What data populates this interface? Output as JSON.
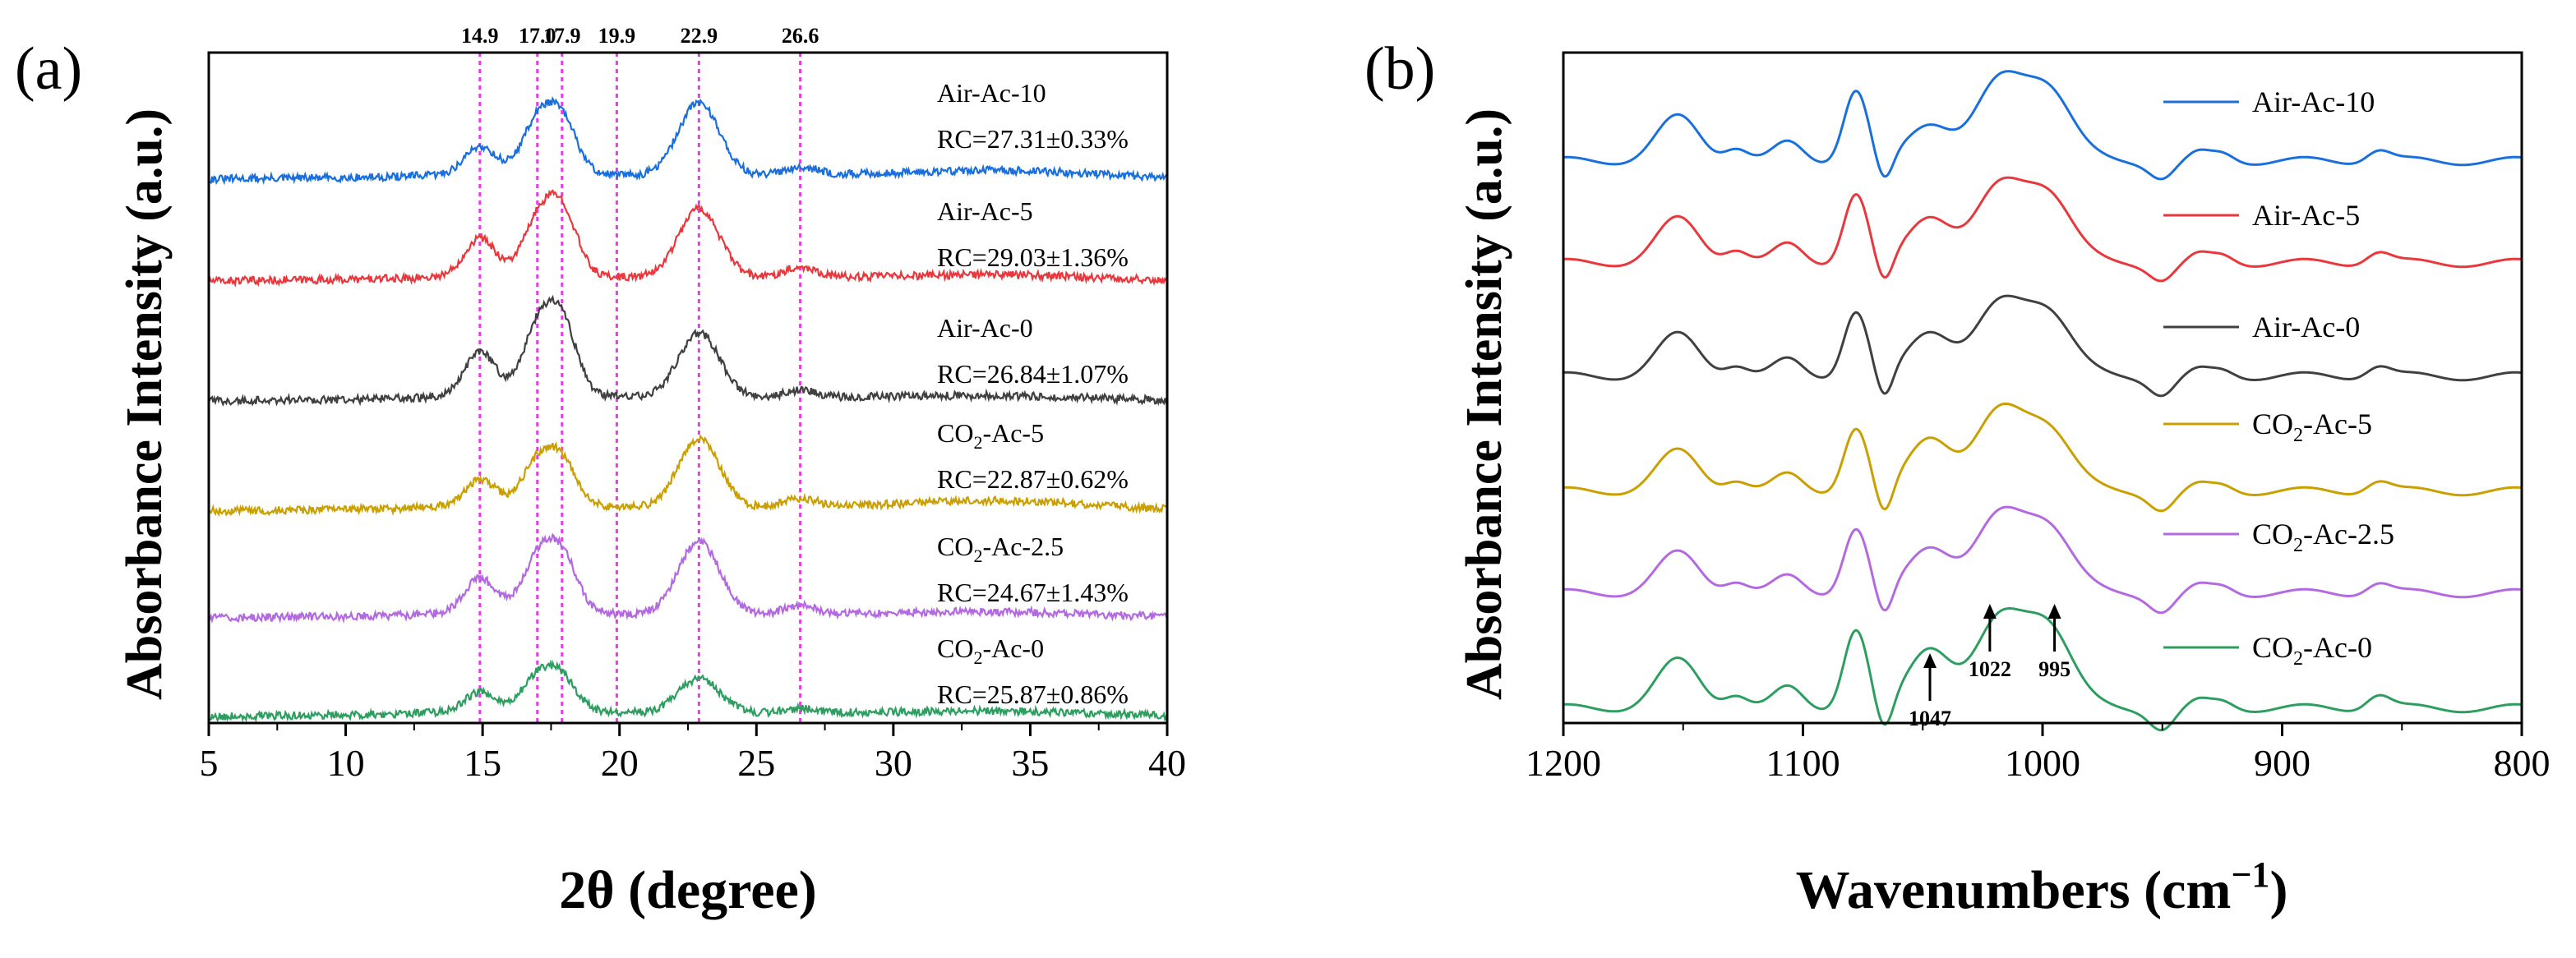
{
  "chart_data": [
    {
      "panel_label": "(a)",
      "type": "line",
      "xlabel": "2θ (degree)",
      "ylabel": "Absorbance Intensity (a.u.)",
      "xlim": [
        5,
        40
      ],
      "xticks": [
        5,
        10,
        15,
        20,
        25,
        30,
        35,
        40
      ],
      "xtick_labels": [
        "5",
        "10",
        "15",
        "20",
        "25",
        "30",
        "35",
        "40"
      ],
      "grid": false,
      "legend": "inline labels at right",
      "reference_lines": [
        {
          "x": 14.9,
          "label": "14.9"
        },
        {
          "x": 17.0,
          "label": "17.0"
        },
        {
          "x": 17.9,
          "label": "17.9"
        },
        {
          "x": 19.9,
          "label": "19.9"
        },
        {
          "x": 22.9,
          "label": "22.9"
        },
        {
          "x": 26.6,
          "label": "26.6"
        }
      ],
      "reference_line_color": "#e040e0",
      "peak_centers": [
        14.9,
        17.0,
        17.9,
        22.9,
        26.6,
        34.0
      ],
      "series": [
        {
          "name": "Air-Ac-10",
          "rc_label": "RC=27.31±0.33%",
          "color": "#1a6fdc",
          "offset": 5,
          "peak_heights": [
            0.3,
            0.55,
            0.58,
            0.85,
            0.1,
            0.08
          ]
        },
        {
          "name": "Air-Ac-5",
          "rc_label": "RC=29.03±1.36%",
          "color": "#e8383d",
          "offset": 4,
          "peak_heights": [
            0.42,
            0.55,
            0.72,
            0.8,
            0.12,
            0.05
          ]
        },
        {
          "name": "Air-Ac-0",
          "rc_label": "RC=26.84±1.07%",
          "color": "#404040",
          "offset": 3,
          "peak_heights": [
            0.5,
            0.7,
            0.8,
            0.75,
            0.08,
            0.04
          ]
        },
        {
          "name": "CO2-Ac-5",
          "name_main": "CO",
          "name_sub": "2",
          "name_tail": "-Ac-5",
          "rc_label": "RC=22.87±0.62%",
          "color": "#c9a000",
          "offset": 2,
          "peak_heights": [
            0.28,
            0.45,
            0.48,
            0.8,
            0.1,
            0.1
          ]
        },
        {
          "name": "CO2-Ac-2.5",
          "name_main": "CO",
          "name_sub": "2",
          "name_tail": "-Ac-2.5",
          "rc_label": "RC=24.67±1.43%",
          "color": "#b36ae0",
          "offset": 1,
          "peak_heights": [
            0.38,
            0.55,
            0.62,
            0.85,
            0.1,
            0.05
          ]
        },
        {
          "name": "CO2-Ac-0",
          "name_main": "CO",
          "name_sub": "2",
          "name_tail": "-Ac-0",
          "rc_label": "RC=25.87±0.86%",
          "color": "#2e9e60",
          "offset": 0,
          "peak_heights": [
            0.2,
            0.35,
            0.35,
            0.4,
            0.05,
            0.04
          ]
        }
      ]
    },
    {
      "panel_label": "(b)",
      "type": "line",
      "xlabel_main": "Wavenumbers (cm",
      "xlabel_sup": "−1",
      "xlabel_tail": ")",
      "ylabel": "Absorbance Intensity (a.u.)",
      "xlim": [
        1200,
        800
      ],
      "xticks": [
        1200,
        1100,
        1000,
        900,
        800
      ],
      "xtick_labels": [
        "1200",
        "1100",
        "1000",
        "900",
        "800"
      ],
      "grid": false,
      "legend": "top-right",
      "annotations": [
        {
          "x": 1047,
          "label": "1047"
        },
        {
          "x": 1022,
          "label": "1022"
        },
        {
          "x": 995,
          "label": "995"
        }
      ],
      "band_centers": [
        1152,
        1128,
        1106,
        1078,
        1066,
        1047,
        1018,
        998,
        950,
        935,
        925,
        860
      ],
      "series": [
        {
          "name": "Air-Ac-10",
          "color": "#1a6fdc",
          "offset": 5,
          "band_heights": [
            0.55,
            0.18,
            0.22,
            0.9,
            -0.35,
            0.5,
            0.95,
            0.92,
            -0.2,
            0.08,
            0.1,
            0.15
          ]
        },
        {
          "name": "Air-Ac-5",
          "color": "#e8383d",
          "offset": 4,
          "band_heights": [
            0.55,
            0.18,
            0.22,
            0.88,
            -0.35,
            0.62,
            0.9,
            0.88,
            -0.2,
            0.08,
            0.1,
            0.15
          ]
        },
        {
          "name": "Air-Ac-0",
          "color": "#404040",
          "offset": 3,
          "band_heights": [
            0.52,
            0.15,
            0.2,
            0.82,
            -0.38,
            0.6,
            0.85,
            0.82,
            -0.22,
            0.06,
            0.08,
            0.14
          ]
        },
        {
          "name": "CO2-Ac-5",
          "name_main": "CO",
          "name_sub": "2",
          "name_tail": "-Ac-5",
          "color": "#c9a000",
          "offset": 2,
          "band_heights": [
            0.5,
            0.15,
            0.2,
            0.8,
            -0.4,
            0.72,
            0.95,
            0.8,
            -0.22,
            0.06,
            0.08,
            0.14
          ]
        },
        {
          "name": "CO2-Ac-2.5",
          "name_main": "CO",
          "name_sub": "2",
          "name_tail": "-Ac-2.5",
          "color": "#b36ae0",
          "offset": 1,
          "band_heights": [
            0.5,
            0.16,
            0.2,
            0.82,
            -0.38,
            0.62,
            0.92,
            0.85,
            -0.22,
            0.07,
            0.09,
            0.14
          ]
        },
        {
          "name": "CO2-Ac-0",
          "name_main": "CO",
          "name_sub": "2",
          "name_tail": "-Ac-0",
          "color": "#2e9e60",
          "offset": 0,
          "band_heights": [
            0.6,
            0.18,
            0.25,
            1.0,
            -0.4,
            0.8,
            1.05,
            1.05,
            -0.25,
            0.07,
            0.09,
            0.18
          ]
        }
      ]
    }
  ]
}
